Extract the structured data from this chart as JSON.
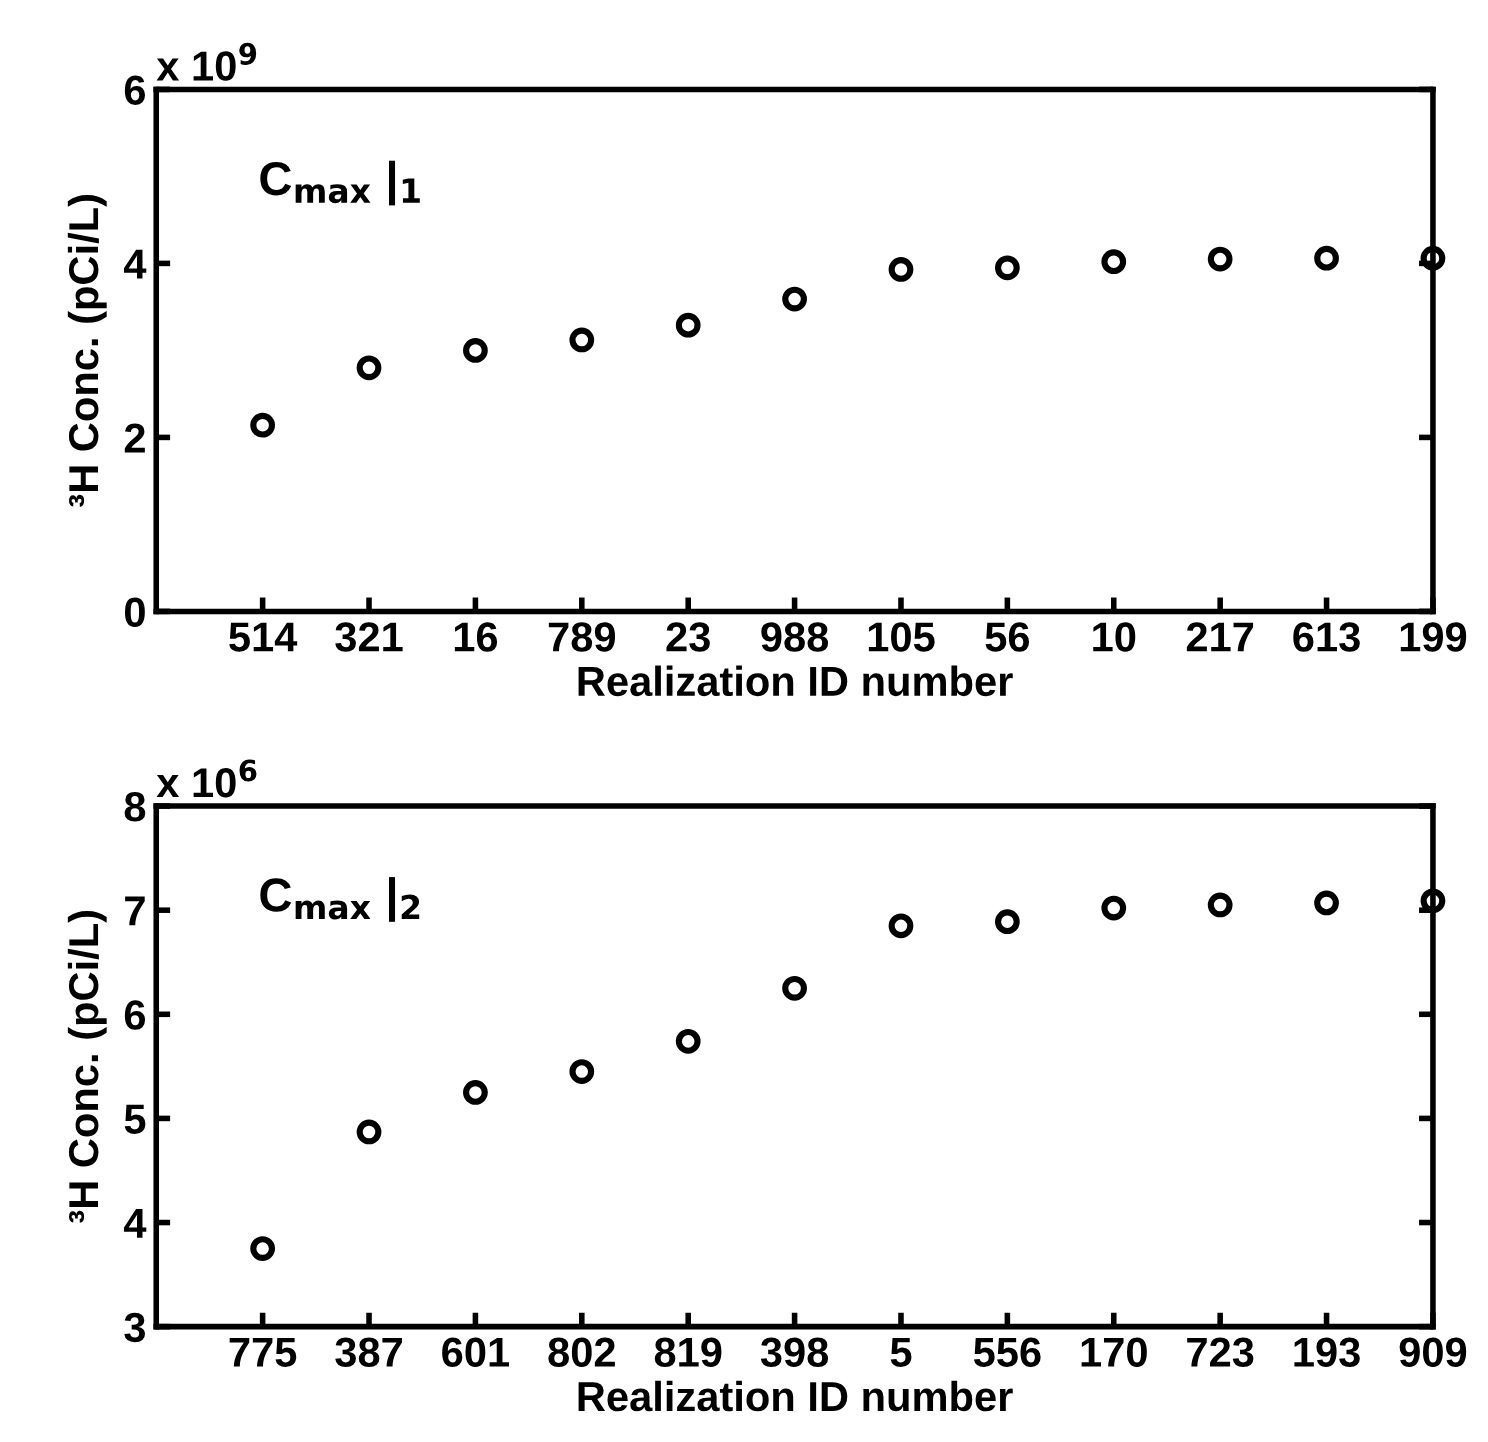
{
  "chart_data": [
    {
      "type": "scatter",
      "xlabel": "Realization ID number",
      "ylabel": "³H Conc. (pCi/L)",
      "annotations": [
        "x 10$^{9}$",
        "C$_{max}$ |$_{1}$"
      ],
      "categories": [
        "514",
        "321",
        "16",
        "789",
        "23",
        "988",
        "105",
        "56",
        "10",
        "217",
        "613",
        "199"
      ],
      "series": [
        {
          "color": "#000000",
          "values": [
            2.14,
            2.8,
            3.0,
            3.12,
            3.29,
            3.59,
            3.93,
            3.95,
            4.02,
            4.05,
            4.06,
            4.06
          ]
        }
      ],
      "ylim": [
        0,
        6
      ],
      "yticks": [
        0,
        2,
        4,
        6
      ],
      "marker": "circle",
      "grid": false,
      "legend": false
    },
    {
      "type": "scatter",
      "xlabel": "Realization ID number",
      "ylabel": "³H Conc. (pCi/L)",
      "annotations": [
        "x 10$^{6}$",
        "C$_{max}$ |$_{2}$"
      ],
      "categories": [
        "775",
        "387",
        "601",
        "802",
        "819",
        "398",
        "5",
        "556",
        "170",
        "723",
        "193",
        "909"
      ],
      "series": [
        {
          "color": "#000000",
          "values": [
            3.75,
            4.87,
            5.25,
            5.45,
            5.74,
            6.25,
            6.85,
            6.89,
            7.02,
            7.05,
            7.07,
            7.09
          ]
        }
      ],
      "ylim": [
        3,
        8
      ],
      "yticks": [
        3,
        4,
        5,
        6,
        7,
        8
      ],
      "marker": "circle",
      "grid": false,
      "legend": false
    }
  ]
}
